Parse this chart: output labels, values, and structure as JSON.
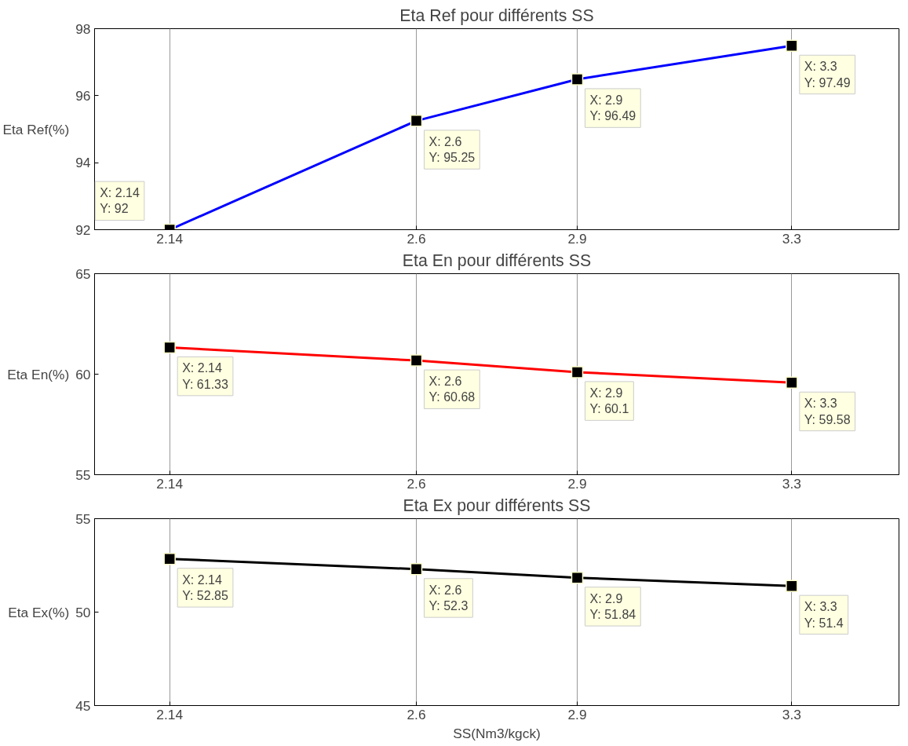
{
  "chart_data": [
    {
      "type": "line",
      "title": "Eta Ref pour différents SS",
      "ylabel": "Eta Ref(%)",
      "x": [
        2.14,
        2.6,
        2.9,
        3.3
      ],
      "series": [
        {
          "color": "#0000ff",
          "values": [
            92,
            95.25,
            96.49,
            97.49
          ]
        }
      ],
      "marker": "square",
      "xlim": [
        2.0,
        3.5
      ],
      "ylim": [
        92,
        98
      ],
      "xticks": [
        2.14,
        2.6,
        2.9,
        3.3
      ],
      "yticks": [
        92,
        94,
        96,
        98
      ],
      "grid": "x",
      "annotations": [
        {
          "text": "X: 2.14\nY: 92",
          "x": 2.14,
          "y": 92
        },
        {
          "text": "X: 2.6\nY: 95.25",
          "x": 2.6,
          "y": 95.25
        },
        {
          "text": "X: 2.9\nY: 96.49",
          "x": 2.9,
          "y": 96.49
        },
        {
          "text": "X: 3.3\nY: 97.49",
          "x": 3.3,
          "y": 97.49
        }
      ]
    },
    {
      "type": "line",
      "title": "Eta En pour différents SS",
      "ylabel": "Eta En(%)",
      "x": [
        2.14,
        2.6,
        2.9,
        3.3
      ],
      "series": [
        {
          "color": "#ff0000",
          "values": [
            61.33,
            60.68,
            60.1,
            59.58
          ]
        }
      ],
      "marker": "square",
      "xlim": [
        2.0,
        3.5
      ],
      "ylim": [
        55,
        65
      ],
      "xticks": [
        2.14,
        2.6,
        2.9,
        3.3
      ],
      "yticks": [
        55,
        60,
        65
      ],
      "grid": "x",
      "annotations": [
        {
          "text": "X: 2.14\nY: 61.33",
          "x": 2.14,
          "y": 61.33
        },
        {
          "text": "X: 2.6\nY: 60.68",
          "x": 2.6,
          "y": 60.68
        },
        {
          "text": "X: 2.9\nY: 60.1",
          "x": 2.9,
          "y": 60.1
        },
        {
          "text": "X: 3.3\nY: 59.58",
          "x": 3.3,
          "y": 59.58
        }
      ]
    },
    {
      "type": "line",
      "title": "Eta Ex pour différents SS",
      "xlabel": "SS(Nm3/kgck)",
      "ylabel": "Eta Ex(%)",
      "x": [
        2.14,
        2.6,
        2.9,
        3.3
      ],
      "series": [
        {
          "color": "#000000",
          "values": [
            52.85,
            52.3,
            51.84,
            51.4
          ]
        }
      ],
      "marker": "square",
      "xlim": [
        2.0,
        3.5
      ],
      "ylim": [
        45,
        55
      ],
      "xticks": [
        2.14,
        2.6,
        2.9,
        3.3
      ],
      "yticks": [
        45,
        50,
        55
      ],
      "grid": "x",
      "annotations": [
        {
          "text": "X: 2.14\nY: 52.85",
          "x": 2.14,
          "y": 52.85
        },
        {
          "text": "X: 2.6\nY: 52.3",
          "x": 2.6,
          "y": 52.3
        },
        {
          "text": "X: 2.9\nY: 51.84",
          "x": 2.9,
          "y": 51.84
        },
        {
          "text": "X: 3.3\nY: 51.4",
          "x": 3.3,
          "y": 51.4
        }
      ]
    }
  ]
}
